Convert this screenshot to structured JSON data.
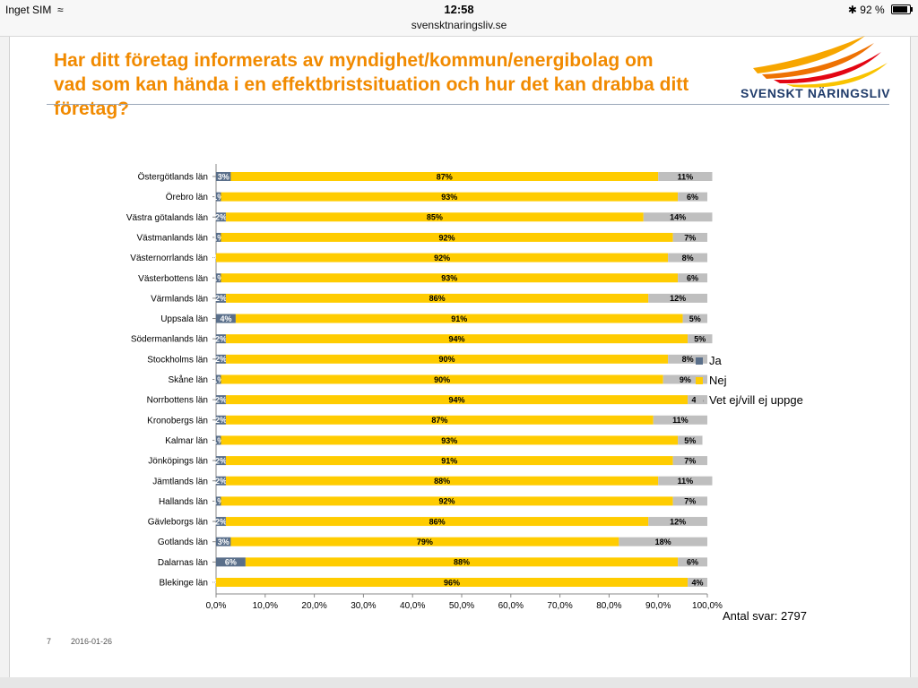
{
  "status_bar": {
    "carrier": "Inget SIM",
    "time": "12:58",
    "url": "svensktnaringsliv.se",
    "battery": "92 %"
  },
  "slide": {
    "title_line1": "Har ditt företag informerats av myndighet/kommun/energibolag om",
    "title_line2": "vad som kan hända i en effektbristsituation och hur det kan drabba ditt företag?",
    "logo_text": "SVENSKT NÄRINGSLIV",
    "antal": "Antal svar: 2797",
    "slide_number": "7",
    "date": "2016-01-26"
  },
  "colors": {
    "ja": "#5a6f8a",
    "nej": "#ffcc00",
    "vet": "#bfbfbf",
    "title": "#f18a00",
    "logo_text": "#1f3b6a"
  },
  "chart_data": {
    "type": "bar",
    "orientation": "horizontal",
    "stacked": true,
    "title": "Har ditt företag informerats av myndighet/kommun/energibolag om vad som kan hända i en effektbristsituation och hur det kan drabba ditt företag?",
    "xlim": [
      0,
      100
    ],
    "x_ticks": [
      "0,0%",
      "10,0%",
      "20,0%",
      "30,0%",
      "40,0%",
      "50,0%",
      "60,0%",
      "70,0%",
      "80,0%",
      "90,0%",
      "100,0%"
    ],
    "legend_position": "right",
    "categories": [
      "Östergötlands län",
      "Örebro län",
      "Västra götalands län",
      "Västmanlands län",
      "Västernorrlands län",
      "Västerbottens län",
      "Värmlands län",
      "Uppsala län",
      "Södermanlands län",
      "Stockholms  län",
      "Skåne län",
      "Norrbottens län",
      "Kronobergs län",
      "Kalmar län",
      "Jönköpings län",
      "Jämtlands län",
      "Hallands län",
      "Gävleborgs län",
      "Gotlands län",
      "Dalarnas län",
      "Blekinge län"
    ],
    "series": [
      {
        "name": "Ja",
        "values": [
          3,
          1,
          2,
          1,
          0,
          1,
          2,
          4,
          2,
          2,
          1,
          2,
          2,
          1,
          2,
          2,
          1,
          2,
          3,
          6,
          0
        ],
        "labels": [
          "3%",
          "1%",
          "2%",
          "1%",
          "0%",
          "1%",
          "2%",
          "4%",
          "2%",
          "2%",
          "1%",
          "2%",
          "2%",
          "1%",
          "2%",
          "2%",
          "1%",
          "2%",
          "3%",
          "6%",
          "0%"
        ]
      },
      {
        "name": "Nej",
        "values": [
          87,
          93,
          85,
          92,
          92,
          93,
          86,
          91,
          94,
          90,
          90,
          94,
          87,
          93,
          91,
          88,
          92,
          86,
          79,
          88,
          96
        ],
        "labels": [
          "87%",
          "93%",
          "85%",
          "92%",
          "92%",
          "93%",
          "86%",
          "91%",
          "94%",
          "90%",
          "90%",
          "94%",
          "87%",
          "93%",
          "91%",
          "88%",
          "92%",
          "86%",
          "79%",
          "88%",
          "96%"
        ]
      },
      {
        "name": "Vet ej/vill ej uppge",
        "values": [
          11,
          6,
          14,
          7,
          8,
          6,
          12,
          5,
          5,
          8,
          9,
          4,
          11,
          5,
          7,
          11,
          7,
          12,
          18,
          6,
          4
        ],
        "labels": [
          "11%",
          "6%",
          "14%",
          "7%",
          "8%",
          "6%",
          "12%",
          "5%",
          "5%",
          "8%",
          "9%",
          "4%",
          "11%",
          "5%",
          "7%",
          "11%",
          "7%",
          "12%",
          "18%",
          "6%",
          "4%"
        ]
      }
    ]
  }
}
